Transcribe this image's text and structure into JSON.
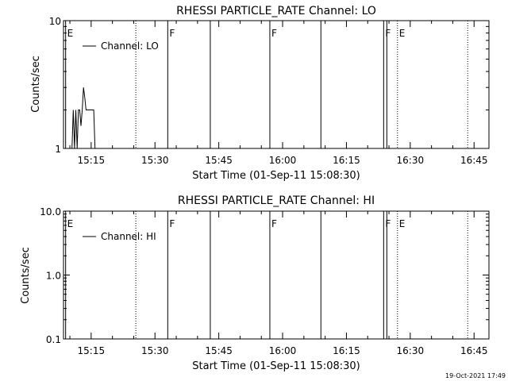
{
  "footer": {
    "timestamp": "19-Oct-2021 17:49"
  },
  "chart_data": [
    {
      "type": "line",
      "title": "RHESSI PARTICLE_RATE Channel: LO",
      "xlabel": "Start Time (01-Sep-11 15:08:30)",
      "ylabel": "Counts/sec",
      "xlim": [
        "15:08:30",
        "16:48:30"
      ],
      "ylim": [
        1,
        10
      ],
      "yscale": "log",
      "x_ticks": [
        "15:15",
        "15:30",
        "15:45",
        "16:00",
        "16:15",
        "16:30",
        "16:45"
      ],
      "y_ticks": [
        "1",
        "10"
      ],
      "legend": {
        "position": "top-left",
        "entries": [
          "Channel: LO"
        ]
      },
      "series": [
        {
          "name": "Channel: LO",
          "x": [
            "15:10:30",
            "15:10:48",
            "15:11:06",
            "15:11:24",
            "15:11:42",
            "15:12:00",
            "15:12:18",
            "15:12:36",
            "15:12:54",
            "15:13:12",
            "15:13:30",
            "15:13:48",
            "15:14:06",
            "15:14:24",
            "15:14:42",
            "15:15:00",
            "15:15:18",
            "15:15:36",
            "15:15:54"
          ],
          "y": [
            1,
            2,
            1,
            2,
            1,
            2,
            2,
            1.5,
            2,
            3,
            2.5,
            2,
            2,
            2,
            2,
            2,
            2,
            2,
            1
          ]
        }
      ],
      "event_lines": [
        {
          "time": "15:09:00",
          "label": "E",
          "style": "solid"
        },
        {
          "time": "15:25:30",
          "label": "",
          "style": "dotted"
        },
        {
          "time": "15:33:00",
          "label": "F",
          "style": "solid"
        },
        {
          "time": "15:43:00",
          "label": "",
          "style": "solid"
        },
        {
          "time": "15:57:00",
          "label": "F",
          "style": "solid"
        },
        {
          "time": "16:09:00",
          "label": "",
          "style": "solid"
        },
        {
          "time": "16:23:45",
          "label": "F",
          "style": "solid"
        },
        {
          "time": "16:24:30",
          "label": "",
          "style": "solid"
        },
        {
          "time": "16:27:00",
          "label": "E",
          "style": "dotted"
        },
        {
          "time": "16:43:30",
          "label": "",
          "style": "dotted"
        }
      ]
    },
    {
      "type": "line",
      "title": "RHESSI PARTICLE_RATE Channel: HI",
      "xlabel": "Start Time (01-Sep-11 15:08:30)",
      "ylabel": "Counts/sec",
      "xlim": [
        "15:08:30",
        "16:48:30"
      ],
      "ylim": [
        0.1,
        10
      ],
      "yscale": "log",
      "x_ticks": [
        "15:15",
        "15:30",
        "15:45",
        "16:00",
        "16:15",
        "16:30",
        "16:45"
      ],
      "y_ticks": [
        "0.1",
        "1.0",
        "10.0"
      ],
      "legend": {
        "position": "top-left",
        "entries": [
          "Channel: HI"
        ]
      },
      "series": [
        {
          "name": "Channel: HI",
          "x": [],
          "y": []
        }
      ],
      "event_lines": [
        {
          "time": "15:09:00",
          "label": "E",
          "style": "solid"
        },
        {
          "time": "15:25:30",
          "label": "",
          "style": "dotted"
        },
        {
          "time": "15:33:00",
          "label": "F",
          "style": "solid"
        },
        {
          "time": "15:43:00",
          "label": "",
          "style": "solid"
        },
        {
          "time": "15:57:00",
          "label": "F",
          "style": "solid"
        },
        {
          "time": "16:09:00",
          "label": "",
          "style": "solid"
        },
        {
          "time": "16:23:45",
          "label": "F",
          "style": "solid"
        },
        {
          "time": "16:24:30",
          "label": "",
          "style": "solid"
        },
        {
          "time": "16:27:00",
          "label": "E",
          "style": "dotted"
        },
        {
          "time": "16:43:30",
          "label": "",
          "style": "dotted"
        }
      ]
    }
  ]
}
